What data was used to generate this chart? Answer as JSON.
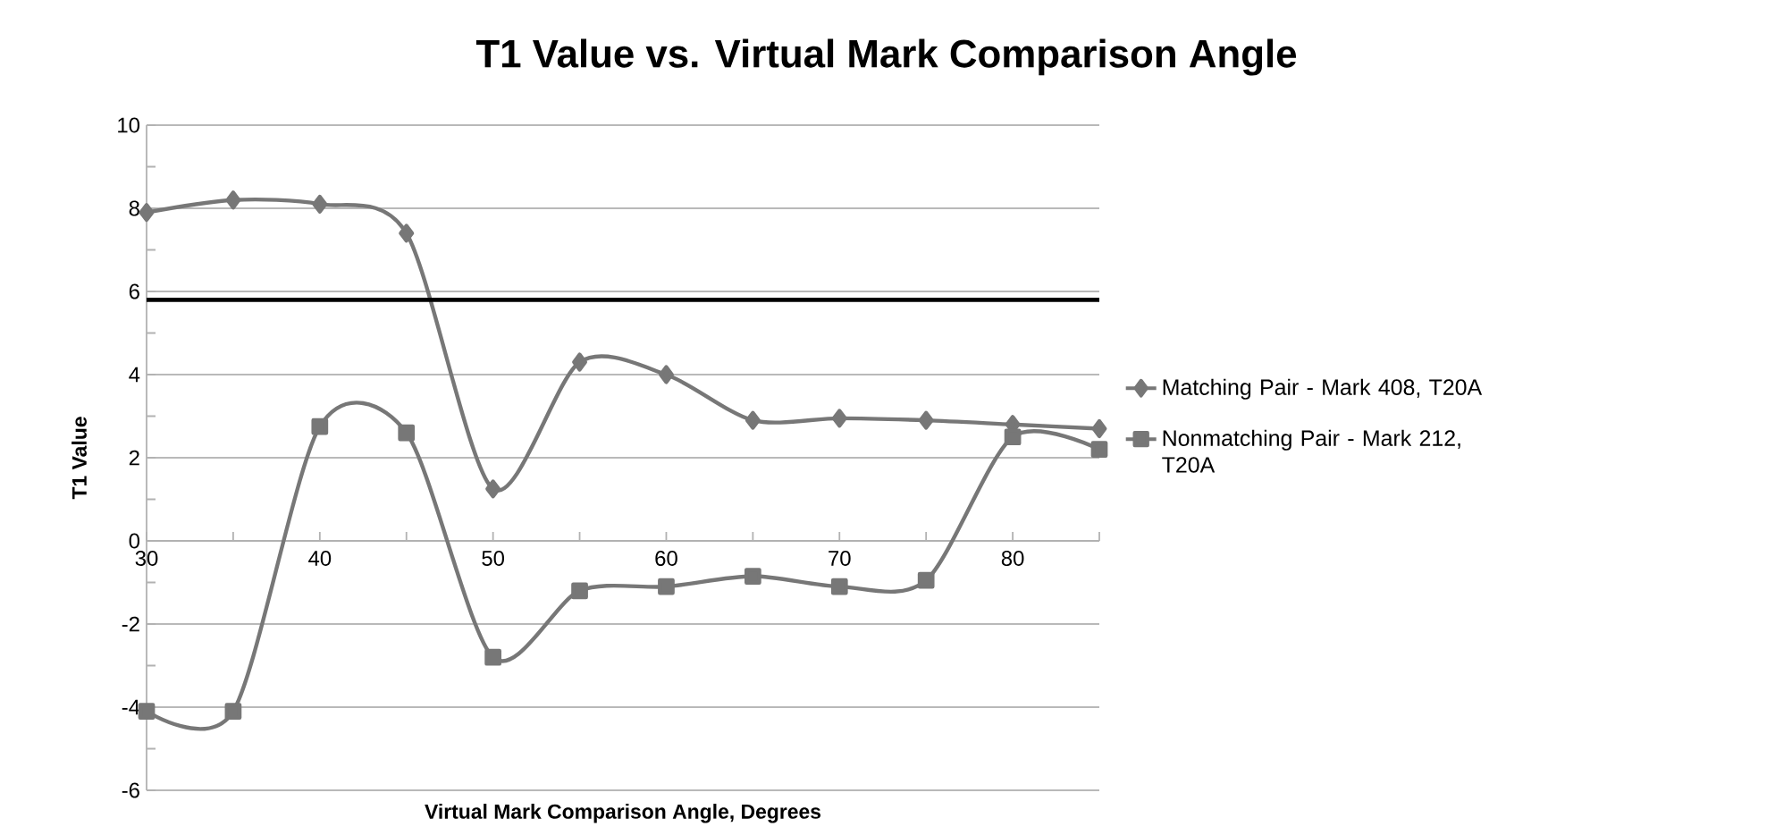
{
  "chart_data": {
    "type": "line",
    "title": "T1 Value vs. Virtual Mark Comparison Angle",
    "xlabel": "Virtual Mark Comparison Angle, Degrees",
    "ylabel": "T1 Value",
    "x": [
      30,
      35,
      40,
      45,
      50,
      55,
      60,
      65,
      70,
      75,
      80,
      85
    ],
    "series": [
      {
        "name": "Matching Pair - Mark 408, T20A",
        "color": "#777777",
        "marker": "diamond",
        "values": [
          7.9,
          8.2,
          8.1,
          7.4,
          1.25,
          4.3,
          4.0,
          2.9,
          2.95,
          2.9,
          2.8,
          2.7
        ]
      },
      {
        "name": "Nonmatching Pair - Mark 212, T20A",
        "color": "#777777",
        "marker": "square",
        "values": [
          -4.1,
          -4.1,
          2.75,
          2.6,
          -2.8,
          -1.2,
          -1.1,
          -0.85,
          -1.1,
          -0.95,
          2.5,
          2.2
        ]
      }
    ],
    "xlim": [
      30,
      85
    ],
    "ylim": [
      -6,
      10
    ],
    "xticks": [
      30,
      {
        "value": 35,
        "label": null
      },
      40,
      {
        "value": 45,
        "label": null
      },
      50,
      {
        "value": 55,
        "label": null
      },
      60,
      {
        "value": 65,
        "label": null
      },
      70,
      {
        "value": 75,
        "label": null
      },
      80,
      {
        "value": 85,
        "label": null
      }
    ],
    "yticks": [
      -6,
      {
        "value": -5,
        "label": null
      },
      -4,
      {
        "value": -3,
        "label": null
      },
      -2,
      {
        "value": -1,
        "label": null
      },
      0,
      {
        "value": 1,
        "label": null
      },
      2,
      {
        "value": 3,
        "label": null
      },
      4,
      {
        "value": 5,
        "label": null
      },
      6,
      {
        "value": 7,
        "label": null
      },
      8,
      {
        "value": 9,
        "label": null
      },
      10
    ],
    "ref_lines": [
      {
        "axis": "y",
        "value": 5.8,
        "color": "#000000"
      }
    ],
    "grid": "y",
    "legend": "right",
    "line_style": "solid"
  }
}
